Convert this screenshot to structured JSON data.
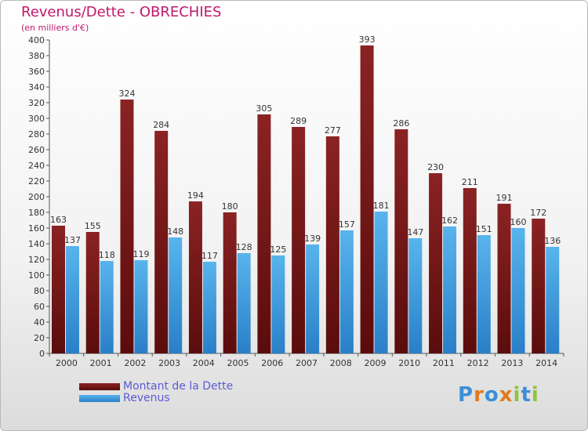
{
  "chart_data": {
    "type": "bar",
    "title": "Revenus/Dette - OBRECHIES",
    "subtitle": "(en milliers d'€)",
    "xlabel": "",
    "ylabel": "",
    "ylim": [
      0,
      400
    ],
    "yticks": [
      0,
      20,
      40,
      60,
      80,
      100,
      120,
      140,
      160,
      180,
      200,
      220,
      240,
      260,
      280,
      300,
      320,
      340,
      360,
      380,
      400
    ],
    "grid": false,
    "legend_position": "bottom-left",
    "categories": [
      "2000",
      "2001",
      "2002",
      "2003",
      "2004",
      "2005",
      "2006",
      "2007",
      "2008",
      "2009",
      "2010",
      "2011",
      "2012",
      "2013",
      "2014"
    ],
    "series": [
      {
        "name": "Montant de la Dette",
        "color": "#8b2323",
        "color_dark": "#5a0c0c",
        "values": [
          163,
          155,
          324,
          284,
          194,
          180,
          305,
          289,
          277,
          393,
          286,
          230,
          211,
          191,
          172
        ]
      },
      {
        "name": "Revenus",
        "color": "#58b4ec",
        "color_dark": "#2a7fc8",
        "values": [
          137,
          118,
          119,
          148,
          117,
          128,
          125,
          139,
          157,
          181,
          147,
          162,
          151,
          160,
          136
        ]
      }
    ]
  },
  "brand": {
    "letters": [
      "P",
      "r",
      "o",
      "x",
      "i",
      "t",
      "i"
    ],
    "colors": [
      "#3c8fd8",
      "#e07a1c",
      "#3c8fd8",
      "#e07a1c",
      "#8cc63f",
      "#3c8fd8",
      "#8cc63f"
    ]
  }
}
